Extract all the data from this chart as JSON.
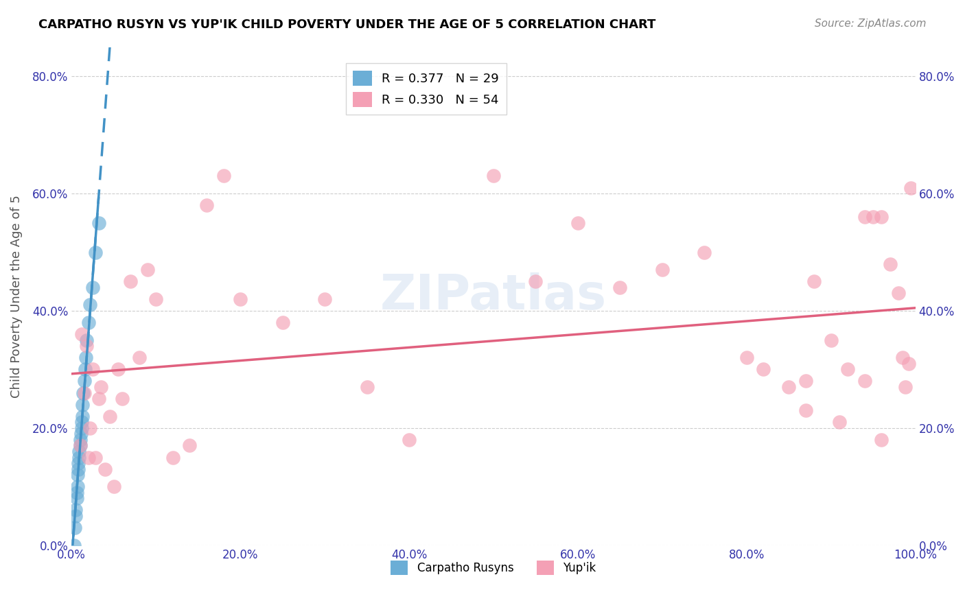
{
  "title": "CARPATHO RUSYN VS YUP'IK CHILD POVERTY UNDER THE AGE OF 5 CORRELATION CHART",
  "source": "Source: ZipAtlas.com",
  "ylabel": "Child Poverty Under the Age of 5",
  "xlabel": "",
  "xlim": [
    0,
    1.0
  ],
  "ylim": [
    0,
    0.85
  ],
  "ytick_labels": [
    "0.0%",
    "20.0%",
    "40.0%",
    "60.0%",
    "80.0%"
  ],
  "ytick_values": [
    0.0,
    0.2,
    0.4,
    0.6,
    0.8
  ],
  "xtick_labels": [
    "0.0%",
    "20.0%",
    "40.0%",
    "60.0%",
    "80.0%",
    "100.0%"
  ],
  "xtick_values": [
    0.0,
    0.2,
    0.4,
    0.6,
    0.8,
    1.0
  ],
  "legend1_r": "R = 0.377",
  "legend1_n": "N = 29",
  "legend2_r": "R = 0.330",
  "legend2_n": "N = 54",
  "legend_label1": "Carpatho Rusyns",
  "legend_label2": "Yup'ik",
  "blue_color": "#6baed6",
  "pink_color": "#f4a0b5",
  "blue_line_color": "#4292c6",
  "pink_line_color": "#e0607e",
  "watermark": "ZIPatlas",
  "carpatho_rusyn_x": [
    0.003,
    0.004,
    0.005,
    0.005,
    0.006,
    0.006,
    0.007,
    0.007,
    0.008,
    0.008,
    0.009,
    0.009,
    0.01,
    0.01,
    0.011,
    0.012,
    0.012,
    0.013,
    0.013,
    0.014,
    0.015,
    0.016,
    0.017,
    0.018,
    0.02,
    0.022,
    0.025,
    0.028,
    0.032
  ],
  "carpatho_rusyn_y": [
    0.0,
    0.03,
    0.05,
    0.06,
    0.08,
    0.09,
    0.1,
    0.12,
    0.13,
    0.14,
    0.15,
    0.16,
    0.17,
    0.18,
    0.19,
    0.2,
    0.21,
    0.22,
    0.24,
    0.26,
    0.28,
    0.3,
    0.32,
    0.35,
    0.38,
    0.41,
    0.44,
    0.5,
    0.55
  ],
  "yupik_x": [
    0.01,
    0.012,
    0.015,
    0.018,
    0.02,
    0.022,
    0.025,
    0.028,
    0.032,
    0.035,
    0.04,
    0.045,
    0.05,
    0.055,
    0.06,
    0.07,
    0.08,
    0.09,
    0.1,
    0.12,
    0.14,
    0.16,
    0.18,
    0.2,
    0.25,
    0.3,
    0.35,
    0.4,
    0.5,
    0.55,
    0.6,
    0.65,
    0.7,
    0.75,
    0.8,
    0.82,
    0.85,
    0.87,
    0.88,
    0.9,
    0.92,
    0.94,
    0.95,
    0.96,
    0.97,
    0.98,
    0.985,
    0.988,
    0.992,
    0.995,
    0.87,
    0.91,
    0.94,
    0.96
  ],
  "yupik_y": [
    0.17,
    0.36,
    0.26,
    0.34,
    0.15,
    0.2,
    0.3,
    0.15,
    0.25,
    0.27,
    0.13,
    0.22,
    0.1,
    0.3,
    0.25,
    0.45,
    0.32,
    0.47,
    0.42,
    0.15,
    0.17,
    0.58,
    0.63,
    0.42,
    0.38,
    0.42,
    0.27,
    0.18,
    0.63,
    0.45,
    0.55,
    0.44,
    0.47,
    0.5,
    0.32,
    0.3,
    0.27,
    0.28,
    0.45,
    0.35,
    0.3,
    0.28,
    0.56,
    0.56,
    0.48,
    0.43,
    0.32,
    0.27,
    0.31,
    0.61,
    0.23,
    0.21,
    0.56,
    0.18
  ]
}
